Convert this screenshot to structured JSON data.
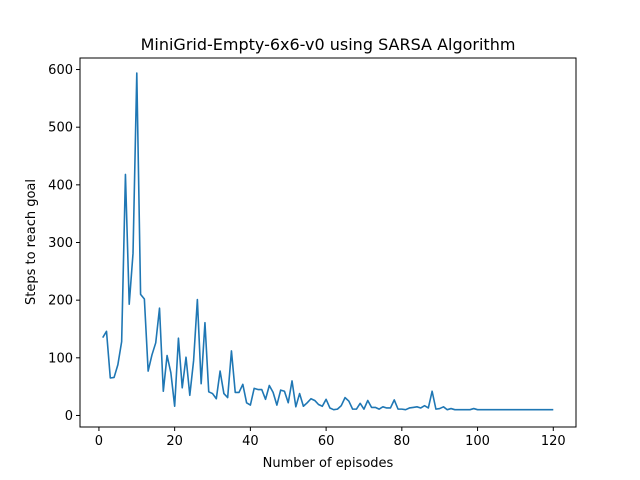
{
  "chart_data": {
    "type": "line",
    "title": "MiniGrid-Empty-6x6-v0 using SARSA Algorithm",
    "xlabel": "Number of episodes",
    "ylabel": "Steps to reach goal",
    "xlim": [
      -5,
      126
    ],
    "ylim": [
      -20,
      620
    ],
    "xticks": [
      0,
      20,
      40,
      60,
      80,
      100,
      120
    ],
    "yticks": [
      0,
      100,
      200,
      300,
      400,
      500,
      600
    ],
    "grid": false,
    "series": [
      {
        "color": "#1f77b4",
        "x": [
          1,
          2,
          3,
          4,
          5,
          6,
          7,
          8,
          9,
          10,
          11,
          12,
          13,
          14,
          15,
          16,
          17,
          18,
          19,
          20,
          21,
          22,
          23,
          24,
          25,
          26,
          27,
          28,
          29,
          30,
          31,
          32,
          33,
          34,
          35,
          36,
          37,
          38,
          39,
          40,
          41,
          42,
          43,
          44,
          45,
          46,
          47,
          48,
          49,
          50,
          51,
          52,
          53,
          54,
          55,
          56,
          57,
          58,
          59,
          60,
          61,
          62,
          63,
          64,
          65,
          66,
          67,
          68,
          69,
          70,
          71,
          72,
          73,
          74,
          75,
          76,
          77,
          78,
          79,
          80,
          81,
          82,
          83,
          84,
          85,
          86,
          87,
          88,
          89,
          90,
          91,
          92,
          93,
          94,
          95,
          96,
          97,
          98,
          99,
          100,
          101,
          102,
          103,
          104,
          105,
          106,
          107,
          108,
          109,
          110,
          111,
          112,
          113,
          114,
          115,
          116,
          117,
          118,
          119,
          120
        ],
        "values": [
          135,
          146,
          65,
          66,
          88,
          128,
          418,
          193,
          281,
          594,
          210,
          202,
          77,
          105,
          126,
          186,
          42,
          104,
          74,
          16,
          134,
          48,
          101,
          35,
          95,
          201,
          55,
          161,
          41,
          38,
          29,
          77,
          38,
          31,
          112,
          40,
          40,
          54,
          22,
          18,
          47,
          45,
          45,
          28,
          52,
          40,
          18,
          44,
          42,
          22,
          60,
          15,
          38,
          16,
          22,
          29,
          26,
          19,
          16,
          28,
          13,
          10,
          11,
          17,
          31,
          25,
          11,
          11,
          21,
          11,
          26,
          14,
          14,
          11,
          15,
          13,
          13,
          27,
          11,
          11,
          10,
          13,
          14,
          15,
          13,
          17,
          13,
          42,
          11,
          12,
          15,
          10,
          12,
          10,
          10,
          10,
          10,
          10,
          12,
          10,
          10,
          10,
          10,
          10,
          10,
          10,
          10,
          10,
          10,
          10,
          10,
          10,
          10,
          10,
          10,
          10,
          10,
          10,
          10,
          10
        ]
      }
    ]
  }
}
